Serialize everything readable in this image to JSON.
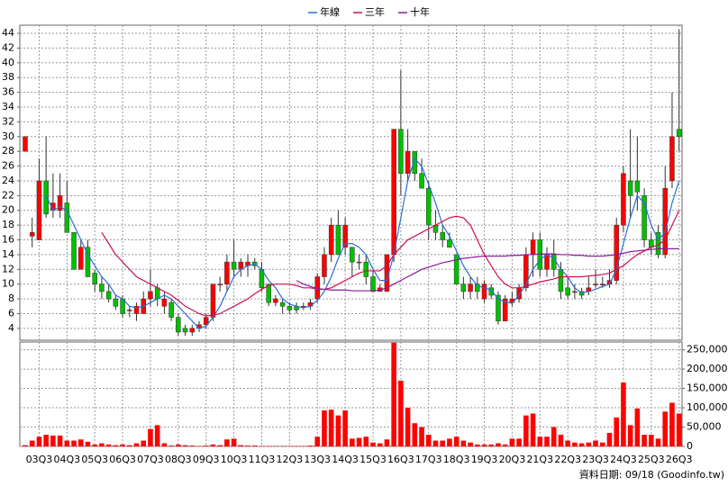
{
  "chart_data": {
    "type": "candlestick",
    "source": "資料日期: 09/18 (Goodinfo.tw)",
    "categories": [
      null,
      null,
      "03Q3",
      null,
      null,
      null,
      "04Q3",
      null,
      null,
      null,
      "05Q3",
      null,
      null,
      null,
      "06Q3",
      null,
      null,
      null,
      "07Q3",
      null,
      null,
      null,
      "08Q3",
      null,
      null,
      null,
      "09Q3",
      null,
      null,
      null,
      "10Q3",
      null,
      null,
      null,
      "11Q3",
      null,
      null,
      null,
      "12Q3",
      null,
      null,
      null,
      "13Q3",
      null,
      null,
      null,
      "14Q3",
      null,
      null,
      null,
      "15Q3",
      null,
      null,
      null,
      "16Q3",
      null,
      null,
      null,
      "17Q3",
      null,
      null,
      null,
      "18Q3",
      null,
      null,
      null,
      "19Q3",
      null,
      null,
      null,
      "20Q3",
      null,
      null,
      null,
      "21Q3",
      null,
      null,
      null,
      "22Q3",
      null,
      null,
      null,
      "23Q3",
      null,
      null,
      null,
      "24Q3",
      null,
      null,
      null,
      "25Q3",
      null,
      null,
      null,
      "26Q3"
    ],
    "open": [
      28,
      16.5,
      16,
      24,
      20,
      20,
      21,
      17,
      12,
      15,
      11.5,
      10,
      9,
      8,
      8,
      6.5,
      6,
      6,
      8,
      9.5,
      7,
      7.5,
      5.5,
      4,
      3.5,
      4,
      4.5,
      5.5,
      10,
      10,
      13,
      12,
      12.5,
      13,
      12,
      10,
      7.5,
      7.5,
      7,
      7,
      7,
      7,
      8,
      11,
      14,
      18,
      15,
      15,
      13,
      13,
      11,
      9,
      9,
      14,
      31,
      25,
      28,
      25,
      23,
      18,
      17,
      16,
      14,
      10,
      9,
      10,
      8,
      9.5,
      8.5,
      5,
      7.5,
      8,
      9.5,
      14,
      16,
      12,
      14,
      12,
      9.5,
      9,
      9,
      9,
      10,
      10,
      10,
      10.5,
      18,
      24,
      24,
      22,
      16,
      17,
      14,
      24,
      31
    ],
    "high": [
      30,
      19,
      27,
      30,
      25,
      25,
      24,
      17,
      16,
      16,
      12,
      11,
      10,
      8.5,
      8.5,
      7,
      7.5,
      9,
      12,
      10,
      9,
      8,
      6,
      4.5,
      4.5,
      5,
      6,
      10,
      11,
      14,
      16,
      13.5,
      14,
      13.5,
      13,
      10,
      8.5,
      8,
      7.5,
      7.5,
      7.5,
      8,
      11.5,
      15,
      19,
      20,
      19,
      15,
      14,
      14,
      12,
      10,
      14,
      31,
      39,
      31,
      28,
      27,
      24,
      20,
      18,
      17,
      14,
      11,
      11,
      11,
      10.5,
      10,
      9,
      8.5,
      9,
      10,
      15,
      17,
      17,
      15,
      16,
      13,
      11,
      10,
      9.5,
      11,
      12,
      11,
      12,
      19,
      26,
      31,
      30,
      23,
      17,
      18,
      26,
      36,
      44.5
    ],
    "low": [
      28,
      15,
      16,
      19,
      19,
      19,
      17,
      12,
      12,
      11,
      9,
      8,
      7.5,
      6.5,
      5.5,
      5.5,
      5,
      6,
      7,
      7,
      6,
      5,
      3,
      3,
      3,
      3.5,
      4,
      5,
      9,
      9,
      11,
      11,
      11,
      12,
      9,
      7,
      7,
      6,
      6,
      6,
      6.5,
      6.5,
      7.5,
      10,
      13,
      14,
      14,
      11,
      12,
      10,
      9,
      9,
      9,
      13,
      22,
      24,
      24,
      23,
      16,
      16,
      15,
      15,
      10,
      8,
      8,
      8,
      7.5,
      8,
      4.5,
      5,
      7,
      7.5,
      9,
      11,
      11,
      11,
      11,
      8,
      8,
      8,
      8,
      8.5,
      9.5,
      9.5,
      9.5,
      10,
      17,
      19,
      20,
      15,
      14,
      13.5,
      13.5,
      23,
      28
    ],
    "close": [
      30,
      17,
      24,
      19.5,
      21,
      22,
      17,
      12,
      15,
      11,
      10,
      9,
      8,
      7,
      6,
      6.5,
      7,
      8,
      9,
      8,
      8,
      5.5,
      3.5,
      3.5,
      4,
      4.5,
      5.5,
      10,
      10,
      13,
      12,
      13,
      13,
      12.5,
      9.5,
      7.5,
      8,
      7,
      6.5,
      6.5,
      7,
      7.5,
      11,
      14,
      18,
      14,
      18,
      13,
      13,
      11,
      9,
      9.5,
      14,
      31,
      25,
      28,
      25,
      23,
      18,
      17,
      16,
      15,
      10,
      9,
      10,
      9,
      10,
      8.5,
      5,
      8,
      8,
      9.5,
      14,
      16,
      12,
      14,
      12,
      9,
      8.5,
      9,
      8.5,
      9.5,
      10,
      10,
      10.5,
      18,
      25,
      22,
      22.5,
      16,
      15,
      14,
      23,
      30,
      30
    ],
    "volume": [
      3000,
      15000,
      25000,
      30000,
      28000,
      28000,
      15000,
      15000,
      18000,
      12000,
      5000,
      8000,
      5000,
      3000,
      5000,
      3000,
      8000,
      15000,
      45000,
      55000,
      8000,
      2000,
      5000,
      3000,
      2000,
      1000,
      2000,
      5000,
      3000,
      18000,
      20000,
      3000,
      2000,
      2000,
      1000,
      1000,
      1000,
      1000,
      1000,
      1000,
      1000,
      2000,
      25000,
      93000,
      95000,
      80000,
      93000,
      20000,
      22000,
      25000,
      10000,
      8000,
      18000,
      268000,
      170000,
      100000,
      60000,
      50000,
      30000,
      15000,
      15000,
      20000,
      25000,
      15000,
      10000,
      5000,
      5000,
      5000,
      8000,
      5000,
      20000,
      20000,
      80000,
      85000,
      25000,
      25000,
      50000,
      30000,
      15000,
      10000,
      8000,
      10000,
      15000,
      10000,
      35000,
      75000,
      165000,
      55000,
      98000,
      30000,
      30000,
      20000,
      90000,
      113000,
      85000
    ],
    "up_color": "#ff0000",
    "down_color": "#00c000",
    "series": [
      {
        "name": "年線",
        "color": "#2a6fd6",
        "values": [
          null,
          null,
          null,
          22,
          20,
          20.5,
          20,
          18,
          16,
          14,
          12.5,
          11,
          10,
          8.5,
          8,
          7,
          6.8,
          7,
          7.5,
          8,
          8.5,
          8,
          7,
          6,
          5,
          4,
          4.3,
          5.5,
          7,
          9,
          11,
          12,
          12.5,
          12.7,
          12,
          10.5,
          9.5,
          8,
          7.3,
          7,
          6.8,
          7,
          7.8,
          9,
          11,
          13.5,
          15.5,
          15.5,
          15,
          14,
          12,
          10.5,
          10.5,
          14,
          19,
          24,
          27,
          26,
          23.5,
          21,
          18,
          16.5,
          14.5,
          12.5,
          11,
          9.8,
          9.5,
          9.2,
          8,
          7.6,
          7.4,
          8.5,
          10,
          12,
          13.3,
          14,
          13.5,
          12,
          11,
          9.5,
          8.8,
          9,
          9.3,
          9.7,
          10,
          12,
          15.5,
          19,
          22,
          21,
          18,
          16,
          17,
          21,
          24
        ]
      },
      {
        "name": "三年",
        "color": "#d0104c",
        "values": [
          null,
          null,
          null,
          null,
          null,
          null,
          null,
          null,
          null,
          null,
          null,
          17,
          15.5,
          14,
          13,
          12,
          11,
          10.5,
          10,
          9.5,
          9,
          8.5,
          7.8,
          7,
          6.5,
          6,
          5.7,
          5.8,
          6,
          6.5,
          7,
          7.5,
          8,
          8.7,
          9.3,
          9.8,
          10,
          10,
          10,
          9.8,
          9.5,
          9.5,
          9.3,
          9.3,
          9.5,
          10,
          10.5,
          11,
          11.5,
          11.8,
          11.8,
          11.8,
          12.5,
          14,
          15,
          16,
          16.5,
          17,
          17.5,
          18,
          18.5,
          19,
          19.2,
          19,
          18,
          16,
          14,
          12.5,
          11,
          10,
          9.5,
          9.5,
          9.7,
          10,
          10.3,
          10.5,
          10.7,
          11,
          11,
          11,
          11,
          11.1,
          11.2,
          11.3,
          11.5,
          12,
          12.5,
          13.3,
          14,
          14.5,
          15,
          15.3,
          16,
          18,
          20
        ]
      },
      {
        "name": "十年",
        "color": "#8a1a9a",
        "values": [
          null,
          null,
          null,
          null,
          null,
          null,
          null,
          null,
          null,
          null,
          null,
          null,
          null,
          null,
          null,
          null,
          null,
          null,
          null,
          null,
          null,
          null,
          null,
          null,
          null,
          null,
          null,
          null,
          null,
          null,
          null,
          null,
          null,
          null,
          null,
          null,
          null,
          null,
          null,
          10.5,
          10,
          9.7,
          9.4,
          9.3,
          9.2,
          9.2,
          9.2,
          9.1,
          9.1,
          9.1,
          9.1,
          9.2,
          9.5,
          10,
          10.5,
          11,
          11.5,
          12,
          12.3,
          12.6,
          12.9,
          13.1,
          13.3,
          13.5,
          13.6,
          13.7,
          13.8,
          13.8,
          13.8,
          13.8,
          13.9,
          13.9,
          14,
          14,
          14.1,
          14.1,
          14.1,
          14,
          14,
          13.9,
          13.9,
          13.8,
          13.8,
          13.8,
          13.9,
          14,
          14.2,
          14.4,
          14.5,
          14.6,
          14.7,
          14.8,
          14.8,
          14.8,
          14.8
        ]
      }
    ],
    "ylim": [
      2.4,
      45.1
    ],
    "yticks": [
      4,
      6,
      8,
      10,
      12,
      14,
      16,
      18,
      20,
      22,
      24,
      26,
      28,
      30,
      32,
      34,
      36,
      38,
      40,
      42,
      44
    ],
    "volume_ylim": [
      0,
      270000
    ],
    "volume_yticks": [
      0,
      {
        "value": 50000,
        "label": "50,000"
      },
      {
        "value": 100000,
        "label": "100,000"
      },
      {
        "value": 150000,
        "label": "150,000"
      },
      {
        "value": 200000,
        "label": "200,000"
      },
      {
        "value": 250000,
        "label": "250,000"
      }
    ],
    "grid": true
  }
}
